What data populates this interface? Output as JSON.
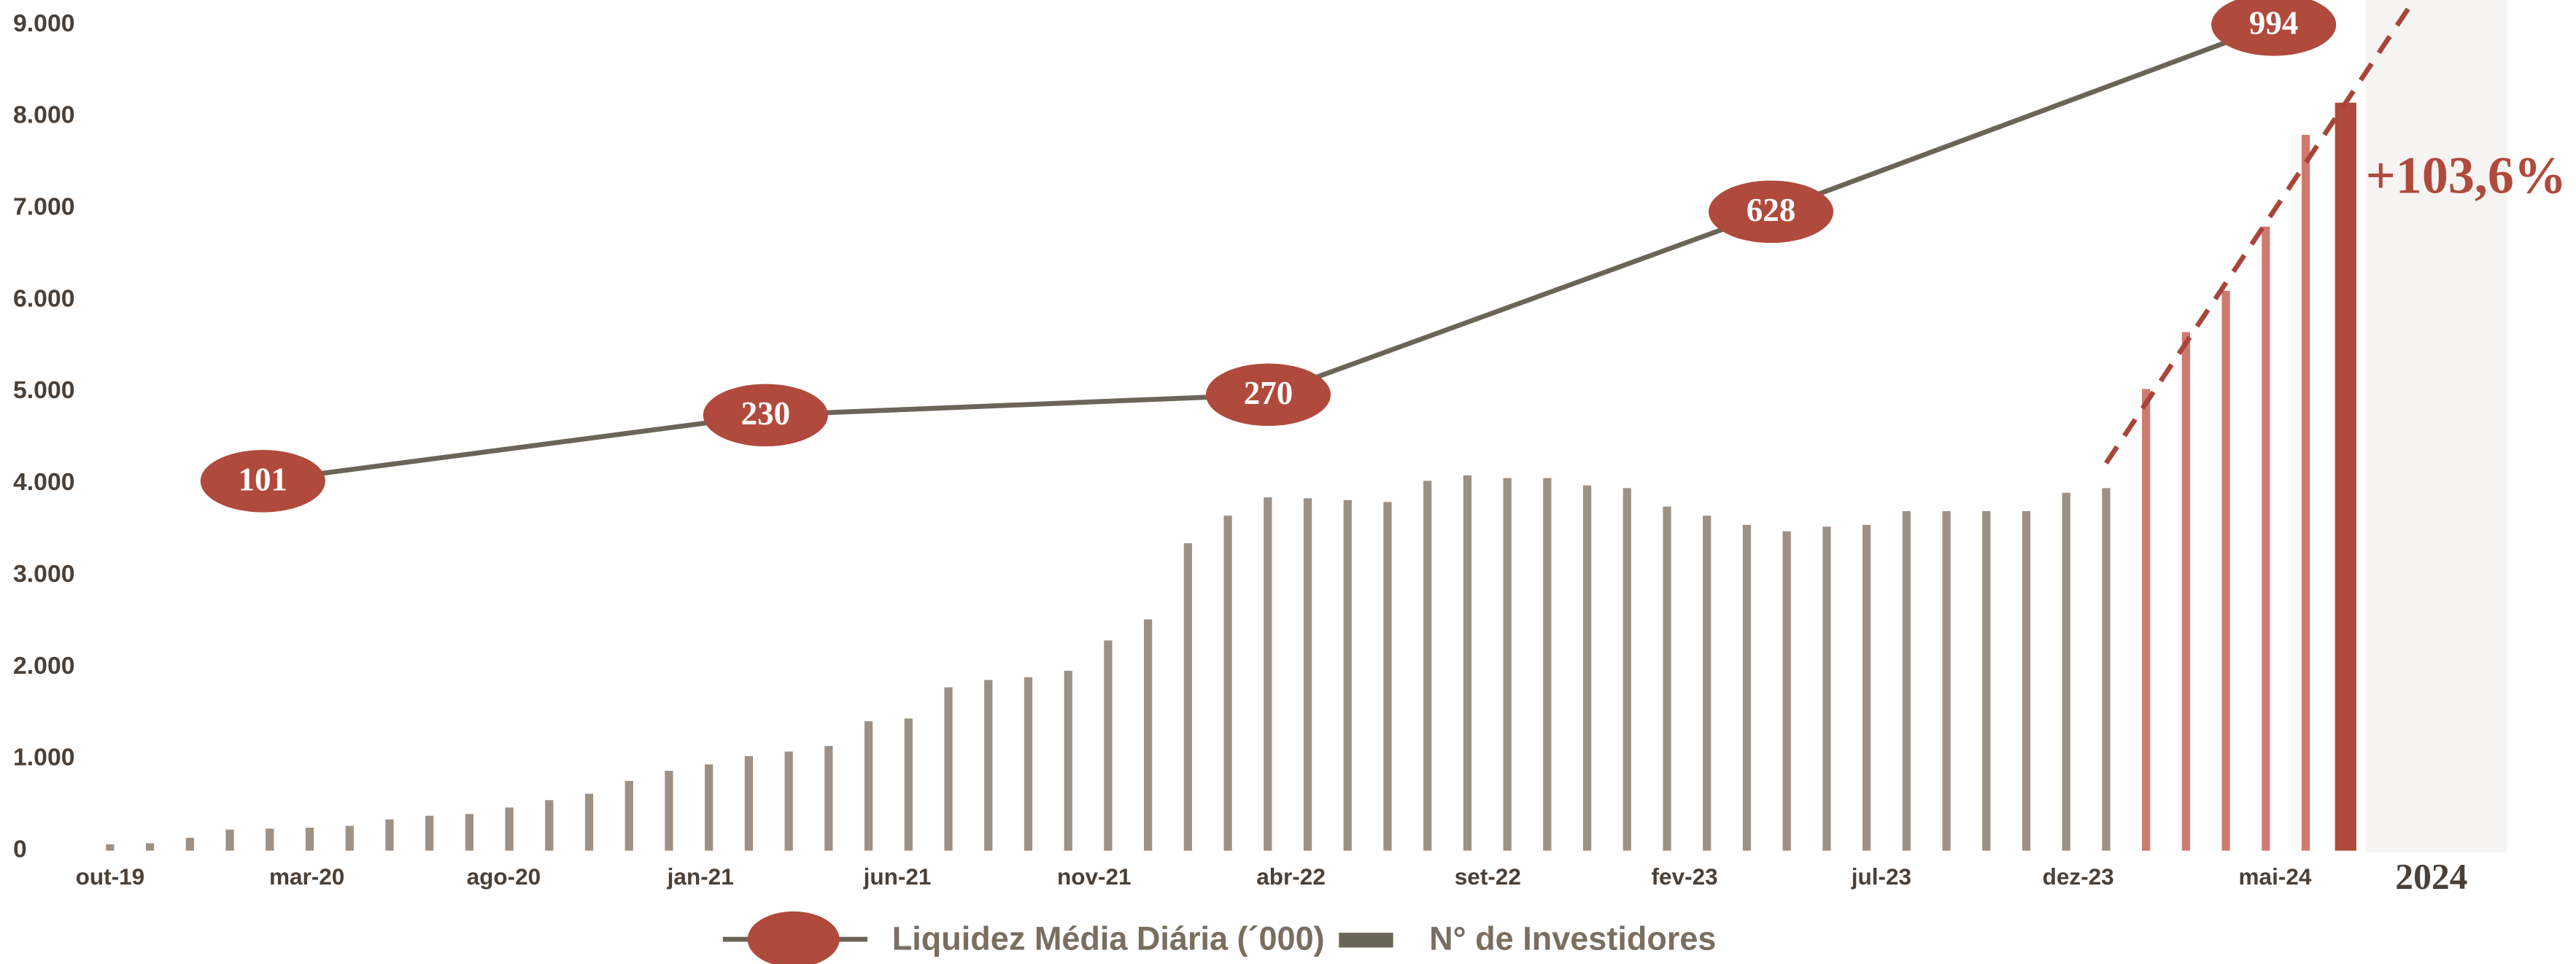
{
  "chart_data": [
    {
      "type": "bar",
      "name": "N° de Investidores",
      "categories": [
        "out-19",
        null,
        null,
        null,
        null,
        "mar-20",
        null,
        null,
        null,
        null,
        "ago-20",
        null,
        null,
        null,
        null,
        "jan-21",
        null,
        null,
        null,
        null,
        "jun-21",
        null,
        null,
        null,
        null,
        "nov-21",
        null,
        null,
        null,
        null,
        "abr-22",
        null,
        null,
        null,
        null,
        "set-22",
        null,
        null,
        null,
        null,
        "fev-23",
        null,
        null,
        null,
        null,
        "jul-23",
        null,
        null,
        null,
        null,
        "dez-23",
        null,
        null,
        null,
        null,
        "mai-24",
        "2024"
      ],
      "values": [
        70,
        80,
        140,
        230,
        240,
        250,
        270,
        340,
        380,
        400,
        470,
        550,
        620,
        760,
        870,
        940,
        1030,
        1080,
        1140,
        1410,
        1440,
        1780,
        1860,
        1890,
        1960,
        2290,
        2520,
        3350,
        3650,
        3850,
        3840,
        3820,
        3800,
        4030,
        4090,
        4060,
        4060,
        3980,
        3950,
        3750,
        3650,
        3550,
        3480,
        3530,
        3550,
        3700,
        3700,
        3700,
        3700,
        3900,
        3950,
        5030,
        5650,
        6100,
        6800,
        7800,
        8150
      ],
      "colors": [
        "#9e9183",
        "#9e9183",
        "#9e9183",
        "#9e9183",
        "#9e9183",
        "#9e9183",
        "#9e9183",
        "#9e9183",
        "#9e9183",
        "#9e9183",
        "#9e9183",
        "#9e9183",
        "#9e9183",
        "#9e9183",
        "#9e9183",
        "#9e9183",
        "#9e9183",
        "#9e9183",
        "#9e9183",
        "#9e9183",
        "#9e9183",
        "#9e9183",
        "#9e9183",
        "#9e9183",
        "#9e9183",
        "#9e9183",
        "#9e9183",
        "#9e9183",
        "#9e9183",
        "#9e9183",
        "#9e9183",
        "#9e9183",
        "#9e9183",
        "#9e9183",
        "#9e9183",
        "#9e9183",
        "#9e9183",
        "#9e9183",
        "#9e9183",
        "#9e9183",
        "#9e9183",
        "#9e9183",
        "#9e9183",
        "#9e9183",
        "#9e9183",
        "#9e9183",
        "#9e9183",
        "#9e9183",
        "#9e9183",
        "#9e9183",
        "#9e9183",
        "#cf7a6f",
        "#cf7a6f",
        "#cf7a6f",
        "#cf7a6f",
        "#cf7a6f",
        "#b04a3c"
      ],
      "legend_color": "#6b6558",
      "ylim": [
        0,
        9000
      ],
      "yticks": [
        0,
        {
          "value": 1000,
          "label": "1.000"
        },
        {
          "value": 2000,
          "label": "2.000"
        },
        {
          "value": 3000,
          "label": "3.000"
        },
        {
          "value": 4000,
          "label": "4.000"
        },
        {
          "value": 5000,
          "label": "5.000"
        },
        {
          "value": 6000,
          "label": "6.000"
        },
        {
          "value": 7000,
          "label": "7.000"
        },
        {
          "value": 8000,
          "label": "8.000"
        },
        {
          "value": 9000,
          "label": "9.000"
        }
      ],
      "annotation": "+103,6%"
    },
    {
      "type": "line",
      "name": "Liquidez Média Diária (´000)",
      "categories": [
        null,
        null,
        null,
        null,
        null
      ],
      "values": [
        101,
        230,
        270,
        628,
        994
      ],
      "color": "#6b6558",
      "marker_color": "#b04a3c",
      "ylim": [
        -622,
        994
      ]
    }
  ]
}
